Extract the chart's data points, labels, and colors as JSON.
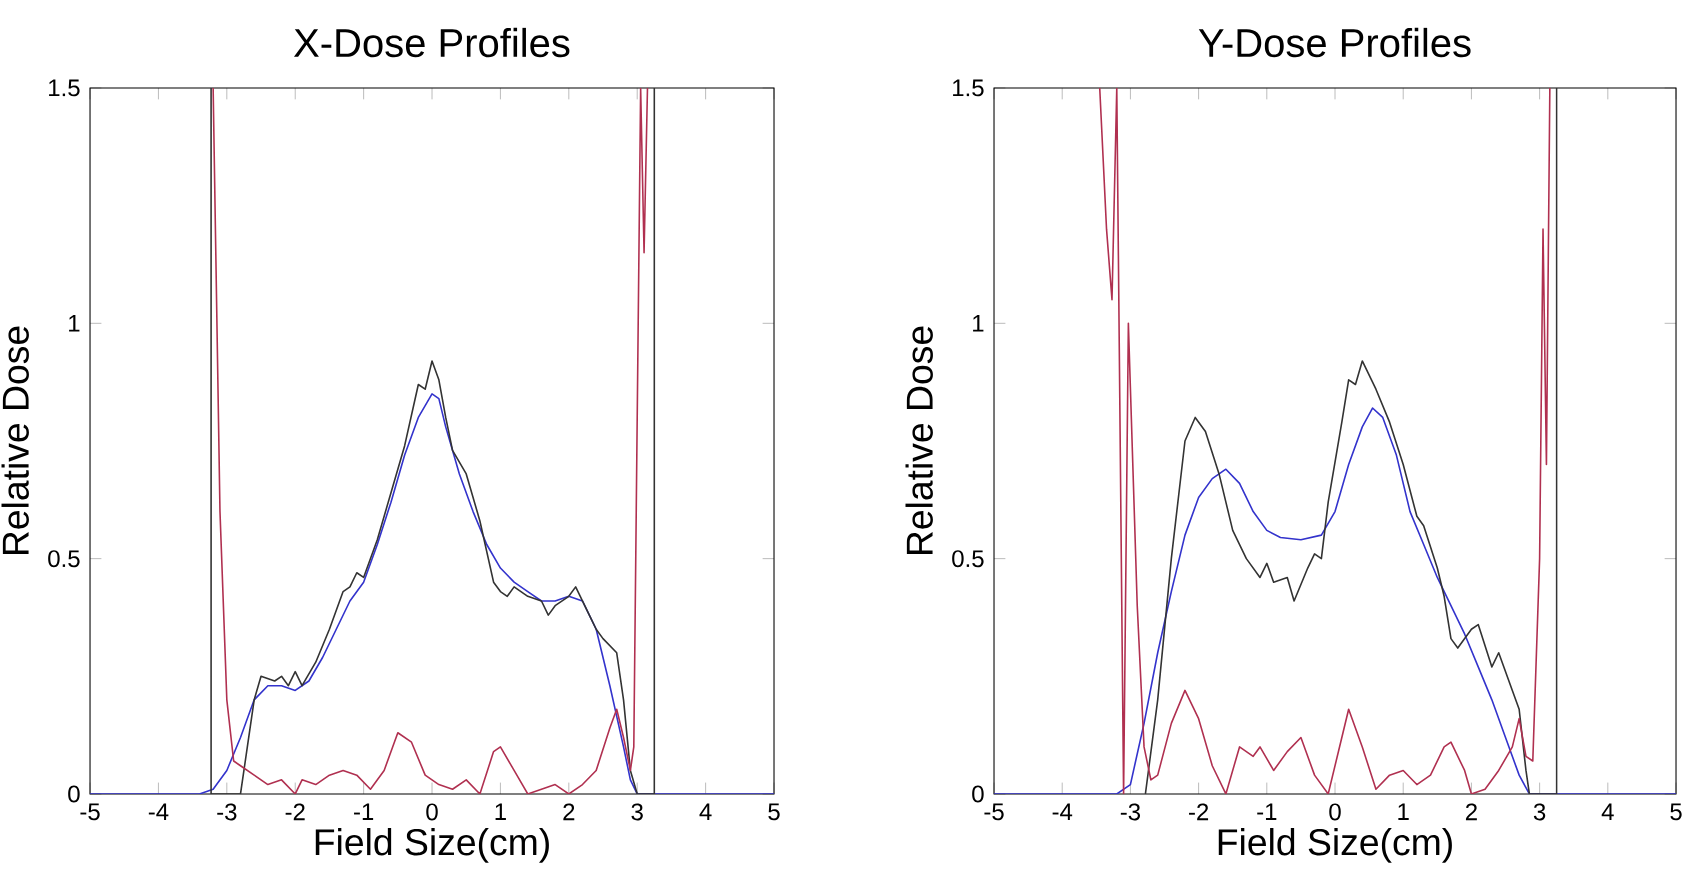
{
  "chart_data": [
    {
      "type": "line",
      "title": "X-Dose Profiles",
      "xlabel": "Field Size(cm)",
      "ylabel": "Relative Dose",
      "xlim": [
        -5,
        5
      ],
      "ylim": [
        0,
        1.5
      ],
      "xticks": [
        -5,
        -4,
        -3,
        -2,
        -1,
        0,
        1,
        2,
        3,
        4,
        5
      ],
      "yticks": [
        0,
        0.5,
        1,
        1.5
      ],
      "series": [
        {
          "color": "#3333cc",
          "x": [
            -5,
            -3.4,
            -3.2,
            -3.0,
            -2.8,
            -2.6,
            -2.4,
            -2.2,
            -2.0,
            -1.8,
            -1.6,
            -1.4,
            -1.2,
            -1.0,
            -0.8,
            -0.6,
            -0.4,
            -0.2,
            0,
            0.1,
            0.2,
            0.4,
            0.6,
            0.8,
            1.0,
            1.2,
            1.4,
            1.6,
            1.8,
            2.0,
            2.2,
            2.4,
            2.6,
            2.8,
            2.9,
            3.0,
            5
          ],
          "values": [
            0,
            0,
            0.01,
            0.05,
            0.12,
            0.2,
            0.23,
            0.23,
            0.22,
            0.24,
            0.29,
            0.35,
            0.41,
            0.45,
            0.53,
            0.62,
            0.72,
            0.8,
            0.85,
            0.84,
            0.78,
            0.68,
            0.6,
            0.53,
            0.48,
            0.45,
            0.43,
            0.41,
            0.41,
            0.42,
            0.41,
            0.35,
            0.23,
            0.1,
            0.03,
            0,
            0
          ]
        },
        {
          "color": "#333333",
          "x": [
            -3.23,
            -3.23,
            -2.8,
            -2.7,
            -2.6,
            -2.5,
            -2.3,
            -2.2,
            -2.1,
            -2.0,
            -1.9,
            -1.7,
            -1.5,
            -1.3,
            -1.2,
            -1.1,
            -1.0,
            -0.8,
            -0.6,
            -0.4,
            -0.2,
            -0.1,
            0,
            0.1,
            0.2,
            0.3,
            0.5,
            0.7,
            0.9,
            1.0,
            1.1,
            1.2,
            1.4,
            1.6,
            1.7,
            1.8,
            2.0,
            2.1,
            2.3,
            2.4,
            2.5,
            2.7,
            2.8,
            2.9,
            3.0,
            3.25,
            3.25
          ],
          "values": [
            1.5,
            0,
            0,
            0.1,
            0.2,
            0.25,
            0.24,
            0.25,
            0.23,
            0.26,
            0.23,
            0.28,
            0.35,
            0.43,
            0.44,
            0.47,
            0.46,
            0.54,
            0.64,
            0.74,
            0.87,
            0.86,
            0.92,
            0.88,
            0.8,
            0.73,
            0.68,
            0.58,
            0.45,
            0.43,
            0.42,
            0.44,
            0.42,
            0.41,
            0.38,
            0.4,
            0.42,
            0.44,
            0.38,
            0.35,
            0.33,
            0.3,
            0.2,
            0.05,
            0,
            0,
            1.5
          ]
        },
        {
          "color": "#b03050",
          "x": [
            -3.2,
            -3.1,
            -3.0,
            -2.9,
            -2.8,
            -2.6,
            -2.4,
            -2.2,
            -2.0,
            -1.9,
            -1.7,
            -1.5,
            -1.3,
            -1.1,
            -0.9,
            -0.7,
            -0.5,
            -0.3,
            -0.1,
            0.1,
            0.3,
            0.5,
            0.7,
            0.9,
            1.0,
            1.2,
            1.4,
            1.6,
            1.8,
            2.0,
            2.2,
            2.4,
            2.6,
            2.7,
            2.8,
            2.9,
            2.95,
            3.05,
            3.1,
            3.15
          ],
          "values": [
            1.5,
            0.6,
            0.2,
            0.07,
            0.06,
            0.04,
            0.02,
            0.03,
            0.0,
            0.03,
            0.02,
            0.04,
            0.05,
            0.04,
            0.01,
            0.05,
            0.13,
            0.11,
            0.04,
            0.02,
            0.01,
            0.03,
            0.0,
            0.09,
            0.1,
            0.05,
            0.0,
            0.01,
            0.02,
            0.0,
            0.02,
            0.05,
            0.14,
            0.18,
            0.12,
            0.05,
            0.1,
            1.5,
            1.15,
            1.5
          ]
        }
      ]
    },
    {
      "type": "line",
      "title": "Y-Dose Profiles",
      "xlabel": "Field Size(cm)",
      "ylabel": "Relative Dose",
      "xlim": [
        -5,
        5
      ],
      "ylim": [
        0,
        1.5
      ],
      "xticks": [
        -5,
        -4,
        -3,
        -2,
        -1,
        0,
        1,
        2,
        3,
        4,
        5
      ],
      "yticks": [
        0,
        0.5,
        1,
        1.5
      ],
      "series": [
        {
          "color": "#3333cc",
          "x": [
            -5,
            -3.2,
            -3.0,
            -2.8,
            -2.6,
            -2.4,
            -2.2,
            -2.0,
            -1.8,
            -1.6,
            -1.4,
            -1.2,
            -1.0,
            -0.8,
            -0.5,
            -0.2,
            0,
            0.2,
            0.4,
            0.55,
            0.7,
            0.9,
            1.1,
            1.3,
            1.5,
            1.7,
            1.9,
            2.1,
            2.3,
            2.5,
            2.7,
            2.85,
            5
          ],
          "values": [
            0,
            0,
            0.02,
            0.15,
            0.3,
            0.43,
            0.55,
            0.63,
            0.67,
            0.69,
            0.66,
            0.6,
            0.56,
            0.545,
            0.54,
            0.55,
            0.6,
            0.7,
            0.78,
            0.82,
            0.8,
            0.72,
            0.6,
            0.53,
            0.46,
            0.4,
            0.34,
            0.27,
            0.2,
            0.12,
            0.04,
            0,
            0
          ]
        },
        {
          "color": "#333333",
          "x": [
            -2.78,
            -2.6,
            -2.4,
            -2.2,
            -2.05,
            -1.9,
            -1.7,
            -1.5,
            -1.3,
            -1.1,
            -1.0,
            -0.9,
            -0.7,
            -0.6,
            -0.4,
            -0.3,
            -0.2,
            -0.1,
            0.1,
            0.2,
            0.3,
            0.4,
            0.6,
            0.8,
            1.0,
            1.2,
            1.3,
            1.5,
            1.6,
            1.7,
            1.8,
            2.0,
            2.1,
            2.3,
            2.4,
            2.6,
            2.7,
            2.8,
            2.85,
            3.25,
            3.25
          ],
          "values": [
            0,
            0.2,
            0.5,
            0.75,
            0.8,
            0.77,
            0.68,
            0.56,
            0.5,
            0.46,
            0.49,
            0.45,
            0.46,
            0.41,
            0.48,
            0.51,
            0.5,
            0.62,
            0.79,
            0.88,
            0.87,
            0.92,
            0.86,
            0.79,
            0.7,
            0.59,
            0.57,
            0.48,
            0.42,
            0.33,
            0.31,
            0.35,
            0.36,
            0.27,
            0.3,
            0.22,
            0.18,
            0.05,
            0,
            0,
            1.5
          ]
        },
        {
          "color": "#b03050",
          "x": [
            -3.45,
            -3.35,
            -3.27,
            -3.2,
            -3.1,
            -3.03,
            -2.9,
            -2.8,
            -2.7,
            -2.6,
            -2.4,
            -2.2,
            -2.0,
            -1.8,
            -1.6,
            -1.4,
            -1.2,
            -1.1,
            -0.9,
            -0.7,
            -0.5,
            -0.3,
            -0.1,
            0.1,
            0.2,
            0.4,
            0.6,
            0.8,
            1.0,
            1.2,
            1.4,
            1.6,
            1.7,
            1.9,
            2.0,
            2.2,
            2.4,
            2.6,
            2.7,
            2.8,
            2.9,
            3.0,
            3.05,
            3.1,
            3.15
          ],
          "values": [
            1.5,
            1.2,
            1.05,
            1.5,
            0.0,
            1.0,
            0.4,
            0.1,
            0.03,
            0.04,
            0.15,
            0.22,
            0.16,
            0.06,
            0.0,
            0.1,
            0.08,
            0.1,
            0.05,
            0.09,
            0.12,
            0.04,
            0.0,
            0.12,
            0.18,
            0.1,
            0.01,
            0.04,
            0.05,
            0.02,
            0.04,
            0.1,
            0.11,
            0.05,
            0.0,
            0.01,
            0.05,
            0.1,
            0.16,
            0.08,
            0.07,
            0.5,
            1.2,
            0.7,
            1.5
          ]
        }
      ]
    }
  ]
}
